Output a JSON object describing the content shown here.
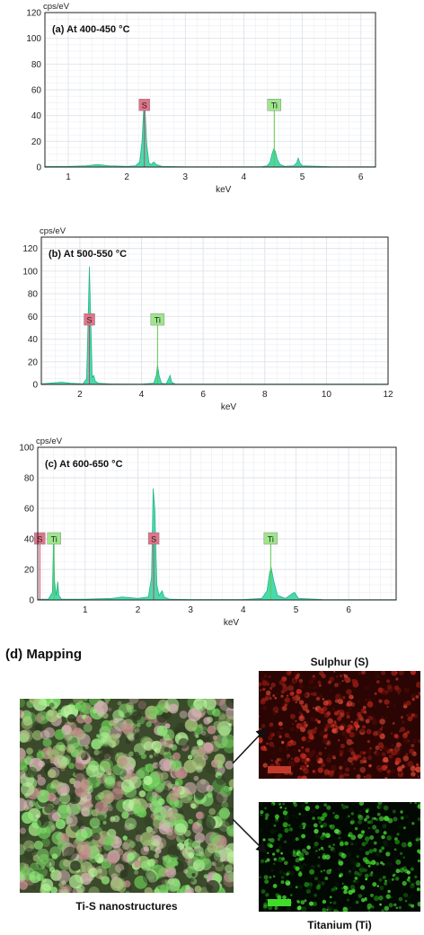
{
  "chart_data": [
    {
      "type": "line",
      "title": "(a) At 400-450 °C",
      "ylabel": "cps/eV",
      "xlabel": "keV",
      "xlim": [
        0.6,
        6.25
      ],
      "ylim": [
        0,
        120
      ],
      "xticks": [
        1,
        2,
        3,
        4,
        5,
        6
      ],
      "yticks": [
        0,
        20,
        40,
        60,
        80,
        100,
        120
      ],
      "series": [
        {
          "x": [
            0.6,
            1.0,
            1.3,
            1.5,
            1.7,
            2.0,
            2.15,
            2.22,
            2.26,
            2.29,
            2.31,
            2.34,
            2.38,
            2.42,
            2.46,
            2.5,
            2.6,
            3.0,
            3.5,
            4.0,
            4.3,
            4.4,
            4.45,
            4.48,
            4.51,
            4.54,
            4.58,
            4.62,
            4.7,
            4.85,
            4.9,
            4.93,
            4.96,
            5.0,
            5.5,
            6.0,
            6.25
          ],
          "y": [
            0.5,
            0.5,
            1,
            2,
            1,
            0.5,
            1,
            4,
            20,
            47,
            45,
            18,
            3,
            2,
            4,
            2,
            0.5,
            0.3,
            0.3,
            0.3,
            0.3,
            1,
            4,
            10,
            14,
            12,
            5,
            2,
            0.5,
            1,
            3,
            7,
            3,
            1,
            0.3,
            0.2,
            0.2
          ]
        }
      ],
      "annotations": [
        {
          "label": "S",
          "x": 2.3,
          "y": 48,
          "color": "#e0748a"
        },
        {
          "label": "Ti",
          "x": 4.52,
          "y": 48,
          "color": "#9ee68c"
        }
      ]
    },
    {
      "type": "line",
      "title": "(b) At 500-550 °C",
      "ylabel": "cps/eV",
      "xlabel": "keV",
      "xlim": [
        0.75,
        12
      ],
      "ylim": [
        0,
        130
      ],
      "xticks": [
        2,
        4,
        6,
        8,
        10,
        12
      ],
      "yticks": [
        0,
        20,
        40,
        60,
        80,
        100,
        120
      ],
      "series": [
        {
          "x": [
            0.75,
            1.0,
            1.4,
            1.7,
            2.1,
            2.22,
            2.27,
            2.31,
            2.35,
            2.4,
            2.45,
            2.5,
            2.6,
            3.0,
            4.0,
            4.4,
            4.48,
            4.52,
            4.57,
            4.65,
            4.8,
            4.88,
            4.93,
            4.98,
            5.1,
            6.0,
            8.0,
            10.0,
            12.0
          ],
          "y": [
            0.5,
            1,
            2,
            1,
            0.5,
            5,
            60,
            104,
            60,
            6,
            8,
            3,
            1,
            0.4,
            0.3,
            1,
            8,
            17,
            8,
            1,
            0.5,
            5,
            8,
            2,
            0.3,
            0.2,
            0.2,
            0.2,
            0.2
          ]
        }
      ],
      "annotations": [
        {
          "label": "S",
          "x": 2.31,
          "y": 57,
          "color": "#e0748a"
        },
        {
          "label": "Ti",
          "x": 4.52,
          "y": 57,
          "color": "#9ee68c"
        }
      ]
    },
    {
      "type": "line",
      "title": "(c) At 600-650 °C",
      "ylabel": "cps/eV",
      "xlabel": "keV",
      "xlim": [
        0.1,
        6.9
      ],
      "ylim": [
        0,
        100
      ],
      "xticks": [
        1,
        2,
        3,
        4,
        5,
        6
      ],
      "yticks": [
        0,
        20,
        40,
        60,
        80,
        100
      ],
      "series": [
        {
          "x": [
            0.1,
            0.3,
            0.38,
            0.4,
            0.42,
            0.45,
            0.48,
            0.5,
            0.55,
            0.8,
            1.0,
            1.5,
            1.7,
            2.0,
            2.2,
            2.26,
            2.29,
            2.32,
            2.36,
            2.4,
            2.46,
            2.5,
            2.6,
            3.0,
            3.5,
            4.0,
            4.35,
            4.45,
            4.5,
            4.53,
            4.58,
            4.65,
            4.8,
            4.92,
            4.97,
            5.05,
            5.5,
            6.0,
            6.9
          ],
          "y": [
            0.5,
            0.5,
            5,
            40,
            12,
            3,
            12,
            3,
            0.5,
            0.5,
            0.5,
            1,
            2,
            1,
            2,
            15,
            73,
            60,
            10,
            3,
            6,
            2,
            0.5,
            0.3,
            0.3,
            0.3,
            1,
            6,
            18,
            21,
            12,
            3,
            1,
            4,
            5,
            1,
            0.3,
            0.2,
            0.2
          ]
        }
      ],
      "annotations": [
        {
          "label": "S",
          "x": 0.14,
          "y": 40,
          "color": "#e0748a"
        },
        {
          "label": "Ti",
          "x": 0.41,
          "y": 40,
          "color": "#9ee68c"
        },
        {
          "label": "S",
          "x": 2.3,
          "y": 40,
          "color": "#e0748a"
        },
        {
          "label": "Ti",
          "x": 4.52,
          "y": 40,
          "color": "#9ee68c"
        }
      ]
    }
  ],
  "mapping": {
    "title": "(d) Mapping",
    "composite_caption": "Ti-S nanostructures",
    "sulphur_caption": "Sulphur (S)",
    "titanium_caption": "Titanium (Ti)"
  },
  "colors": {
    "spectrum_fill": "#3fd8a8",
    "spectrum_stroke": "#27b389",
    "grid": "#dfe3e8",
    "s_label": "#e0748a",
    "ti_label": "#9ee68c",
    "sulphur_map": "#cc2a1e",
    "titanium_map": "#3fdc2a"
  }
}
